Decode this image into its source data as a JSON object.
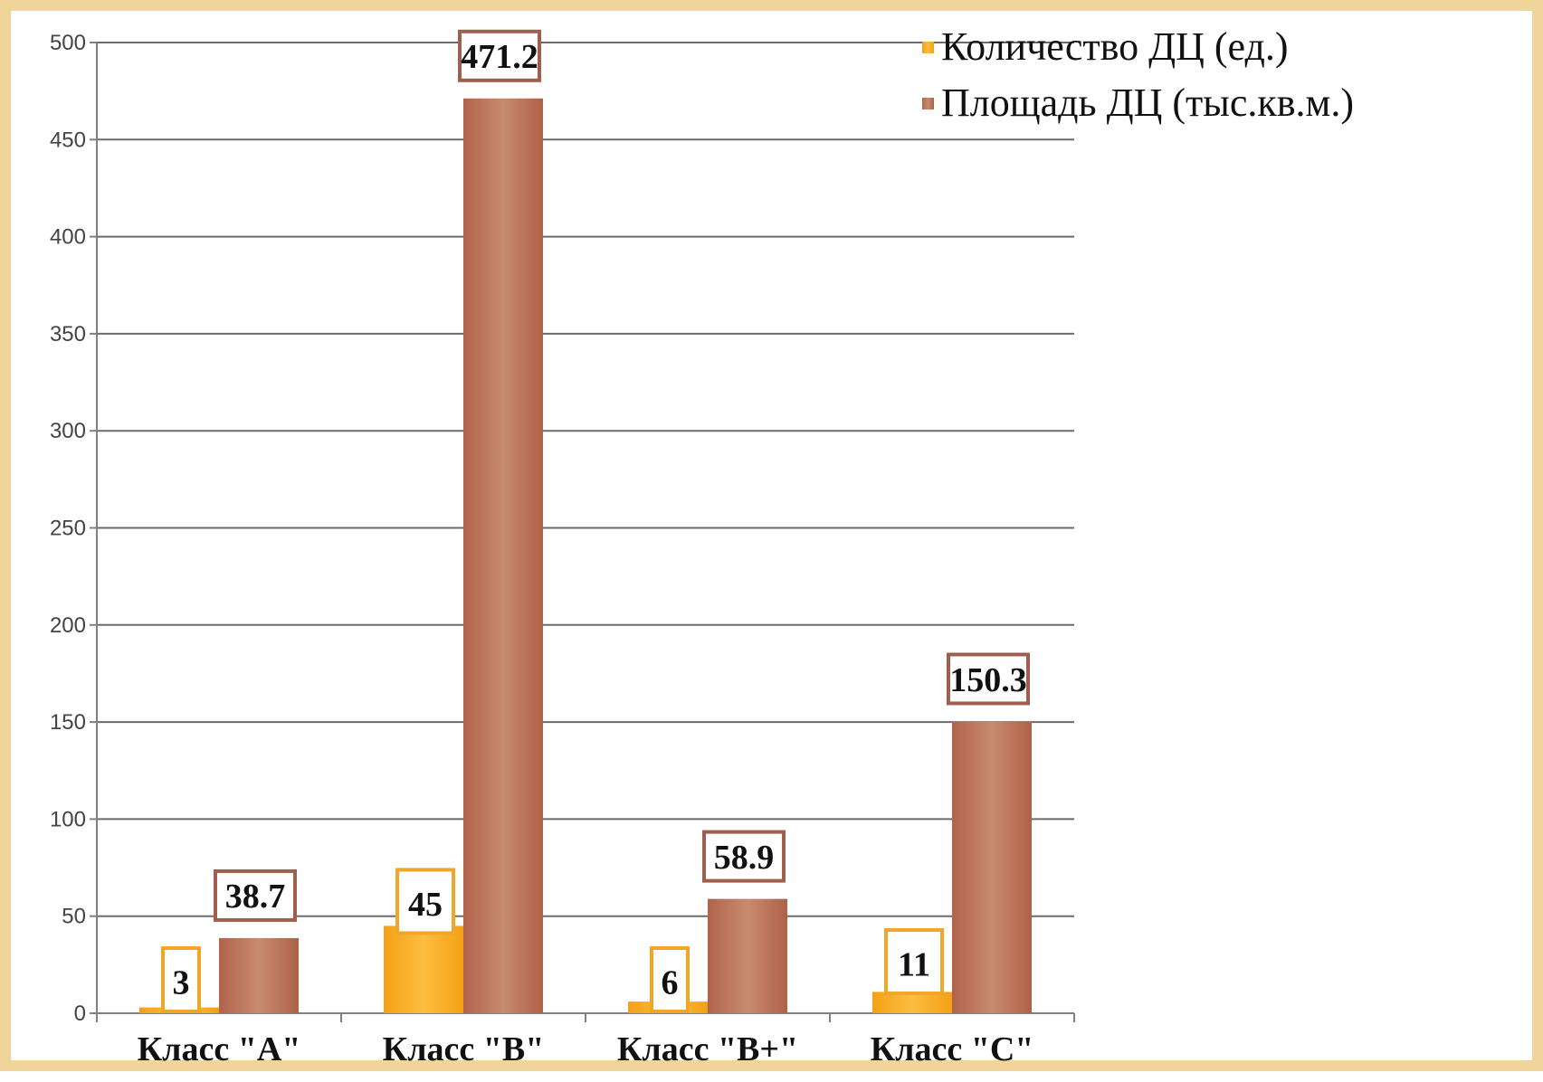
{
  "chart_data": {
    "type": "bar",
    "categories": [
      "Класс \"A\"",
      "Класс \"B\"",
      "Класс \"B+\"",
      "Класс \"C\""
    ],
    "series": [
      {
        "name": "Количество ДЦ (ед.)",
        "values": [
          3,
          45,
          6,
          11
        ],
        "color": "#f7a51f",
        "label_border": "#f1a52a"
      },
      {
        "name": "Площадь ДЦ (тыс.кв.м.)",
        "values": [
          38.7,
          471.2,
          58.9,
          150.3
        ],
        "color": "#b86a4d",
        "label_border": "#a05f4e"
      }
    ],
    "data_labels": [
      [
        "3",
        "45",
        "6",
        "11"
      ],
      [
        "38.7",
        "471.2",
        "58.9",
        "150.3"
      ]
    ],
    "yticks": [
      "0",
      "50",
      "100",
      "150",
      "200",
      "250",
      "300",
      "350",
      "400",
      "450",
      "500"
    ],
    "ylim": [
      0,
      500
    ],
    "grid": true,
    "legend_position": "top-right",
    "frame_color": "#f1d49a"
  }
}
